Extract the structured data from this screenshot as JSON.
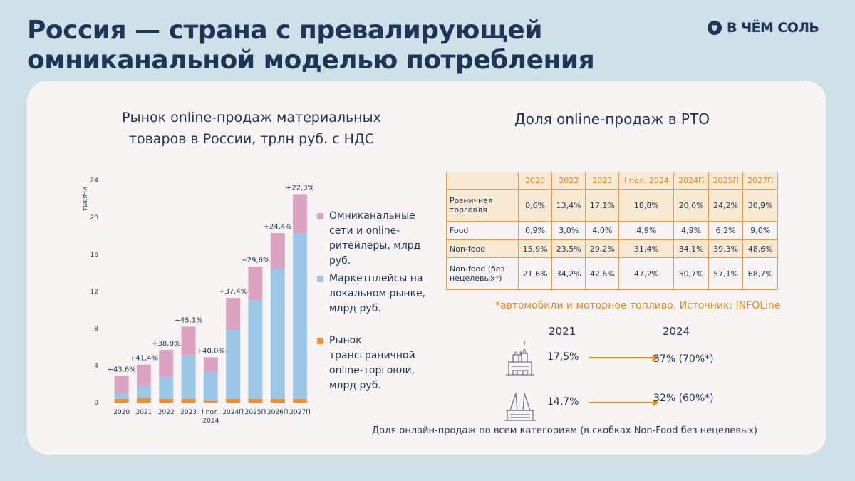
{
  "header": {
    "title_line1": "Россия — страна с превалирующей",
    "title_line2": "омниканальной моделью потребления",
    "logo_text": "В ЧЁМ СОЛЬ",
    "logo_icon": "heart-drop-icon"
  },
  "colors": {
    "omni": "#dba3c1",
    "marketplace": "#9cc6e6",
    "crossborder": "#e8923b",
    "accent": "#e08a21",
    "text": "#1e3557"
  },
  "left": {
    "title_line1": "Рынок online-продаж материальных",
    "title_line2": "товаров в России, трлн руб. с НДС",
    "legend": [
      "Омниканальные сети и online-ритейлеры, млрд руб.",
      "Маркетплейсы на локальном рынке, млрд руб.",
      "Рынок трансграничной online-торговли, млрд руб."
    ]
  },
  "chart_data": {
    "type": "bar",
    "stacked": true,
    "ylabel": "тысячи",
    "ylim": [
      0,
      24
    ],
    "yticks": [
      0,
      4,
      8,
      12,
      16,
      20,
      24
    ],
    "categories": [
      "2020",
      "2021",
      "2022",
      "2023",
      "I пол. 2024",
      "2024П",
      "2025П",
      "2026П",
      "2027П"
    ],
    "series": [
      {
        "name": "Рынок трансграничной online-торговли, млрд руб.",
        "color": "crossborder",
        "values": [
          0.4,
          0.5,
          0.4,
          0.4,
          0.2,
          0.4,
          0.4,
          0.4,
          0.4
        ]
      },
      {
        "name": "Маркетплейсы на локальном рынке, млрд руб.",
        "color": "marketplace",
        "values": [
          0.6,
          1.3,
          2.4,
          4.7,
          3.1,
          7.5,
          10.7,
          14.1,
          17.9
        ]
      },
      {
        "name": "Омниканальные сети и online-ритейлеры, млрд руб.",
        "color": "omni",
        "values": [
          1.9,
          2.3,
          2.9,
          3.1,
          1.6,
          3.4,
          3.6,
          3.8,
          4.2
        ]
      }
    ],
    "growth_labels": [
      "+43,6%",
      "+41,4%",
      "+38,8%",
      "+45,1%",
      "+40,0%",
      "+37,4%",
      "+29,6%",
      "+24,4%",
      "+22,3%"
    ]
  },
  "right": {
    "title": "Доля online-продаж в РТО",
    "table": {
      "headers": [
        "2020",
        "2022",
        "2023",
        "I пол. 2024",
        "2024П",
        "2025П",
        "2027П"
      ],
      "rows": [
        {
          "label": "Розничная торговля",
          "values": [
            "8,6%",
            "13,4%",
            "17,1%",
            "18,8%",
            "20,6%",
            "24,2%",
            "30,9%"
          ]
        },
        {
          "label": "Food",
          "values": [
            "0,9%",
            "3,0%",
            "4,0%",
            "4,9%",
            "4,9%",
            "6,2%",
            "9,0%"
          ]
        },
        {
          "label": "Non-food",
          "values": [
            "15,9%",
            "23,5%",
            "29,2%",
            "31,4%",
            "34,1%",
            "39,3%",
            "48,6%"
          ]
        },
        {
          "label": "Non-food (без нецелевых*)",
          "values": [
            "21,6%",
            "34,2%",
            "42,6%",
            "47,2%",
            "50,7%",
            "57,1%",
            "68,7%"
          ]
        }
      ]
    },
    "footnote": "*автомобили и моторное топливо. Источник: INFOLine",
    "comparison": {
      "year_from": "2021",
      "year_to": "2024",
      "rows": [
        {
          "icon": "moscow-kremlin-icon",
          "from": "17,5%",
          "to": "37% (70%*)"
        },
        {
          "icon": "spb-bridge-icon",
          "from": "14,7%",
          "to": "32% (60%*)"
        }
      ]
    },
    "caption": "Доля онлайн-продаж по всем категориям (в скобках Non-Food без нецелевых)"
  }
}
